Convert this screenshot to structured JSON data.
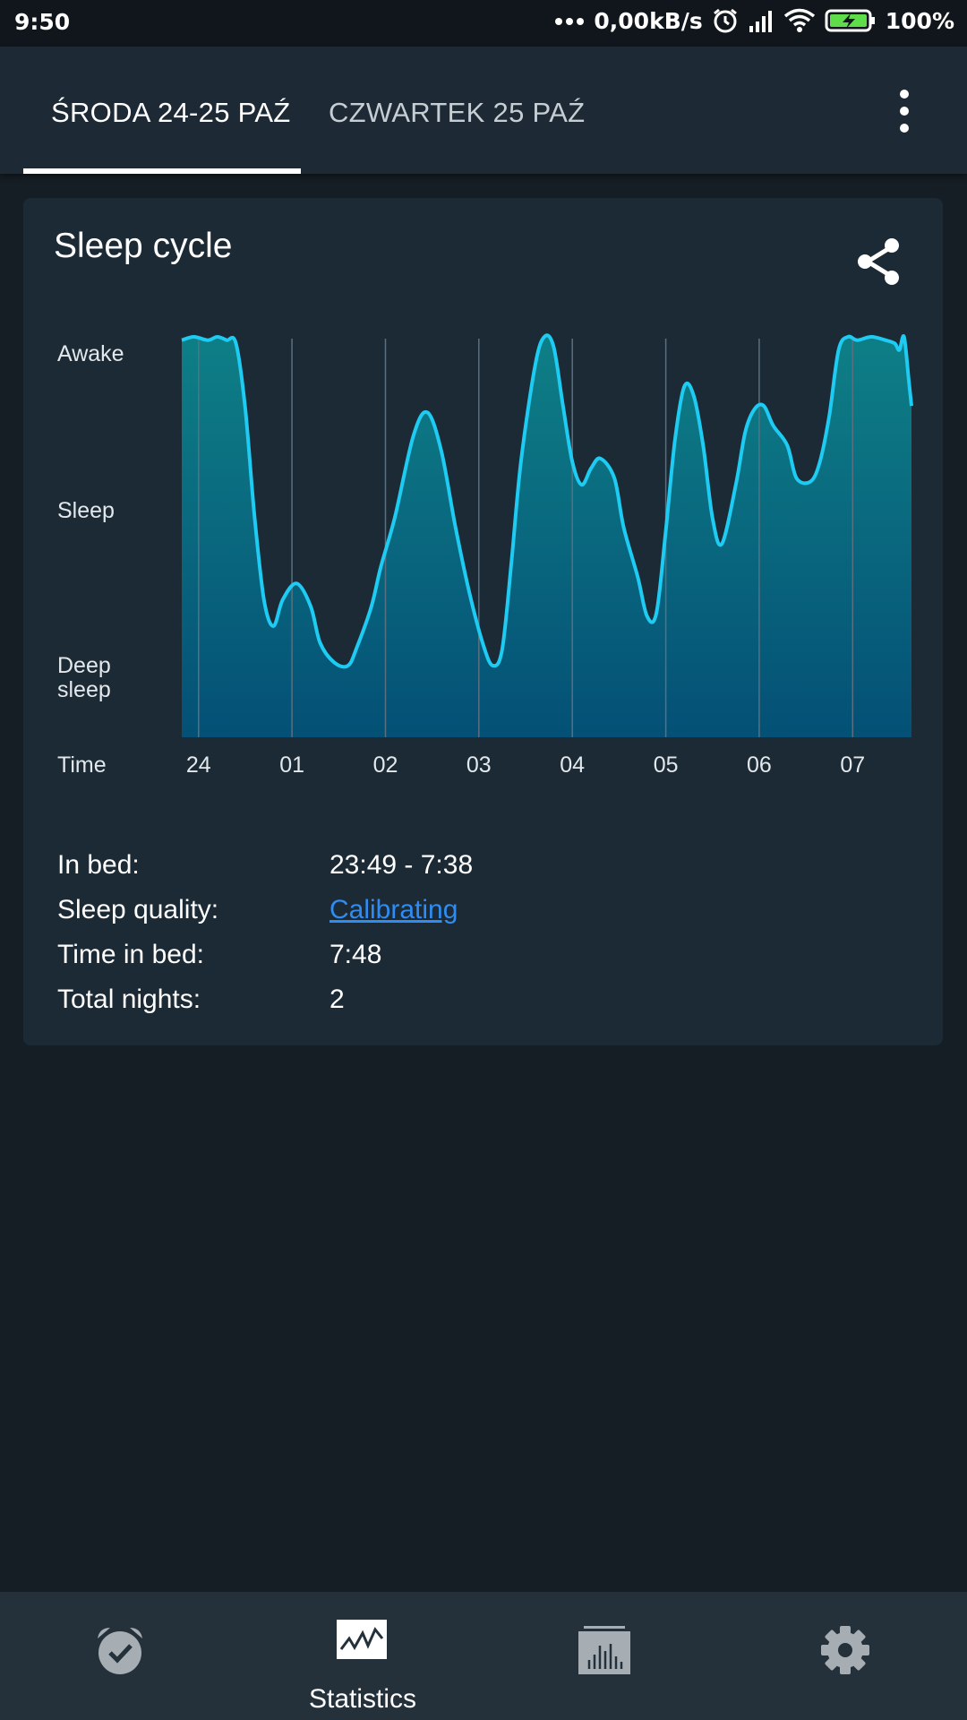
{
  "status_bar": {
    "time": "9:50",
    "speed": "0,00kB/s",
    "battery": "100%",
    "icons": [
      "more-dots-icon",
      "alarm-icon",
      "signal-icon",
      "wifi-icon",
      "battery-charging-icon"
    ]
  },
  "tabs": [
    {
      "label": "ŚRODA 24-25 PAŹ",
      "selected": true
    },
    {
      "label": "CZWARTEK 25 PAŹ",
      "selected": false
    }
  ],
  "card": {
    "title": "Sleep cycle",
    "share_icon": "share-icon"
  },
  "chart_data": {
    "type": "area",
    "y_categories": [
      "Awake",
      "Sleep",
      "Deep sleep"
    ],
    "y_range": [
      0,
      1
    ],
    "x_label": "Time",
    "x_ticks": [
      "24",
      "01",
      "02",
      "03",
      "04",
      "05",
      "06",
      "07"
    ],
    "x_tick_hours": [
      0,
      1,
      2,
      3,
      4,
      5,
      6,
      7
    ],
    "x_range": [
      -0.18,
      7.63
    ],
    "grid": "vertical",
    "colors": {
      "line": "#1ecbf2",
      "fill_top": "#0e7f86",
      "fill_bottom": "#045076",
      "grid": "#5a7080"
    },
    "series": [
      {
        "x": [
          -0.18,
          -0.05,
          0.1,
          0.2,
          0.3,
          0.4,
          0.5,
          0.6,
          0.7,
          0.8,
          0.9,
          1.05,
          1.2,
          1.3,
          1.45,
          1.6,
          1.7,
          1.85,
          1.95,
          2.1,
          2.3,
          2.45,
          2.6,
          2.75,
          2.9,
          3.05,
          3.15,
          3.25,
          3.35,
          3.45,
          3.6,
          3.7,
          3.8,
          3.9,
          4.0,
          4.1,
          4.2,
          4.3,
          4.45,
          4.55,
          4.7,
          4.8,
          4.9,
          5.0,
          5.1,
          5.2,
          5.3,
          5.4,
          5.5,
          5.6,
          5.75,
          5.85,
          5.95,
          6.05,
          6.15,
          6.3,
          6.4,
          6.55,
          6.65,
          6.75,
          6.85,
          6.95,
          7.05,
          7.2,
          7.35,
          7.45,
          7.5,
          7.55,
          7.6,
          7.63
        ],
        "y": [
          0.99,
          1.0,
          0.99,
          1.0,
          0.99,
          0.98,
          0.78,
          0.45,
          0.2,
          0.12,
          0.2,
          0.25,
          0.18,
          0.07,
          0.01,
          0.0,
          0.06,
          0.18,
          0.3,
          0.45,
          0.7,
          0.77,
          0.65,
          0.42,
          0.22,
          0.06,
          0.0,
          0.05,
          0.32,
          0.62,
          0.91,
          1.0,
          0.97,
          0.79,
          0.62,
          0.55,
          0.6,
          0.63,
          0.57,
          0.42,
          0.27,
          0.15,
          0.16,
          0.41,
          0.69,
          0.85,
          0.82,
          0.67,
          0.45,
          0.37,
          0.55,
          0.71,
          0.78,
          0.79,
          0.73,
          0.67,
          0.57,
          0.56,
          0.62,
          0.76,
          0.96,
          1.0,
          0.99,
          1.0,
          0.99,
          0.98,
          0.96,
          1.0,
          0.87,
          0.79
        ]
      }
    ]
  },
  "info": [
    {
      "label": "In bed:",
      "value": "23:49 - 7:38",
      "link": false
    },
    {
      "label": "Sleep quality:",
      "value": "Calibrating",
      "link": true
    },
    {
      "label": "Time in bed:",
      "value": "7:48",
      "link": false
    },
    {
      "label": "Total nights:",
      "value": "2",
      "link": false
    }
  ],
  "bottom_nav": [
    {
      "icon": "alarm-clock-icon",
      "label": "",
      "selected": false
    },
    {
      "icon": "statistics-chart-icon",
      "label": "Statistics",
      "selected": true
    },
    {
      "icon": "sleep-history-icon",
      "label": "",
      "selected": false
    },
    {
      "icon": "settings-gear-icon",
      "label": "",
      "selected": false
    }
  ]
}
